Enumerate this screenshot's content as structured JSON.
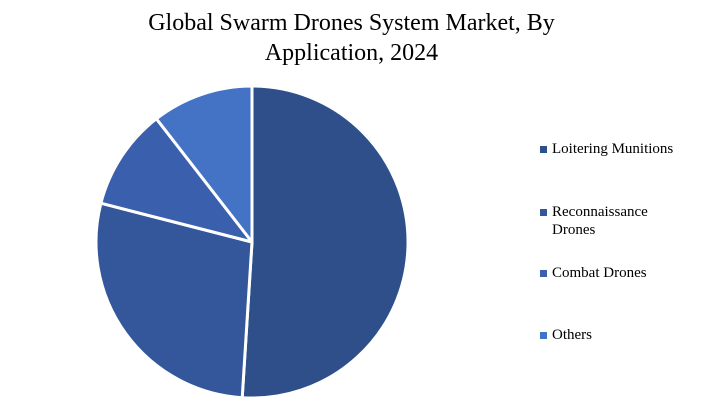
{
  "chart_data": {
    "type": "pie",
    "title_lines": [
      "Global Swarm Drones System Market, By",
      "Application, 2024"
    ],
    "categories": [
      "Loitering Munitions",
      "Reconnaissance Drones",
      "Combat Drones",
      "Others"
    ],
    "values": [
      51,
      28,
      10.5,
      10.5
    ],
    "colors": [
      "#2e4f8a",
      "#34569a",
      "#3a60ad",
      "#4472c4"
    ],
    "legend_position": "right",
    "slice_border_color": "#ffffff"
  }
}
